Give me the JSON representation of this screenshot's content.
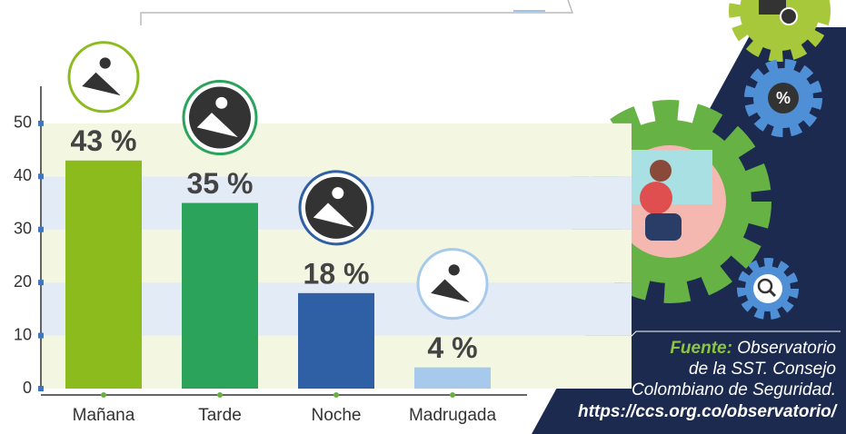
{
  "chart_data": {
    "type": "bar",
    "categories": [
      "Mañana",
      "Tarde",
      "Noche",
      "Madrugada"
    ],
    "values": [
      43,
      35,
      18,
      4
    ],
    "value_labels": [
      "43 %",
      "35 %",
      "18 %",
      "4 %"
    ],
    "colors": [
      "#8cbb1e",
      "#2ba35b",
      "#2f5fa5",
      "#a6c9ec"
    ],
    "ylim": [
      0,
      57
    ],
    "yticks": [
      0,
      10,
      20,
      30,
      40,
      50
    ],
    "grid": true
  },
  "source": {
    "label": "Fuente:",
    "lines": [
      "Observatorio",
      "de la SST. Consejo",
      "Colombiano de Seguridad."
    ],
    "url": "https://ccs.org.co/observatorio/"
  }
}
